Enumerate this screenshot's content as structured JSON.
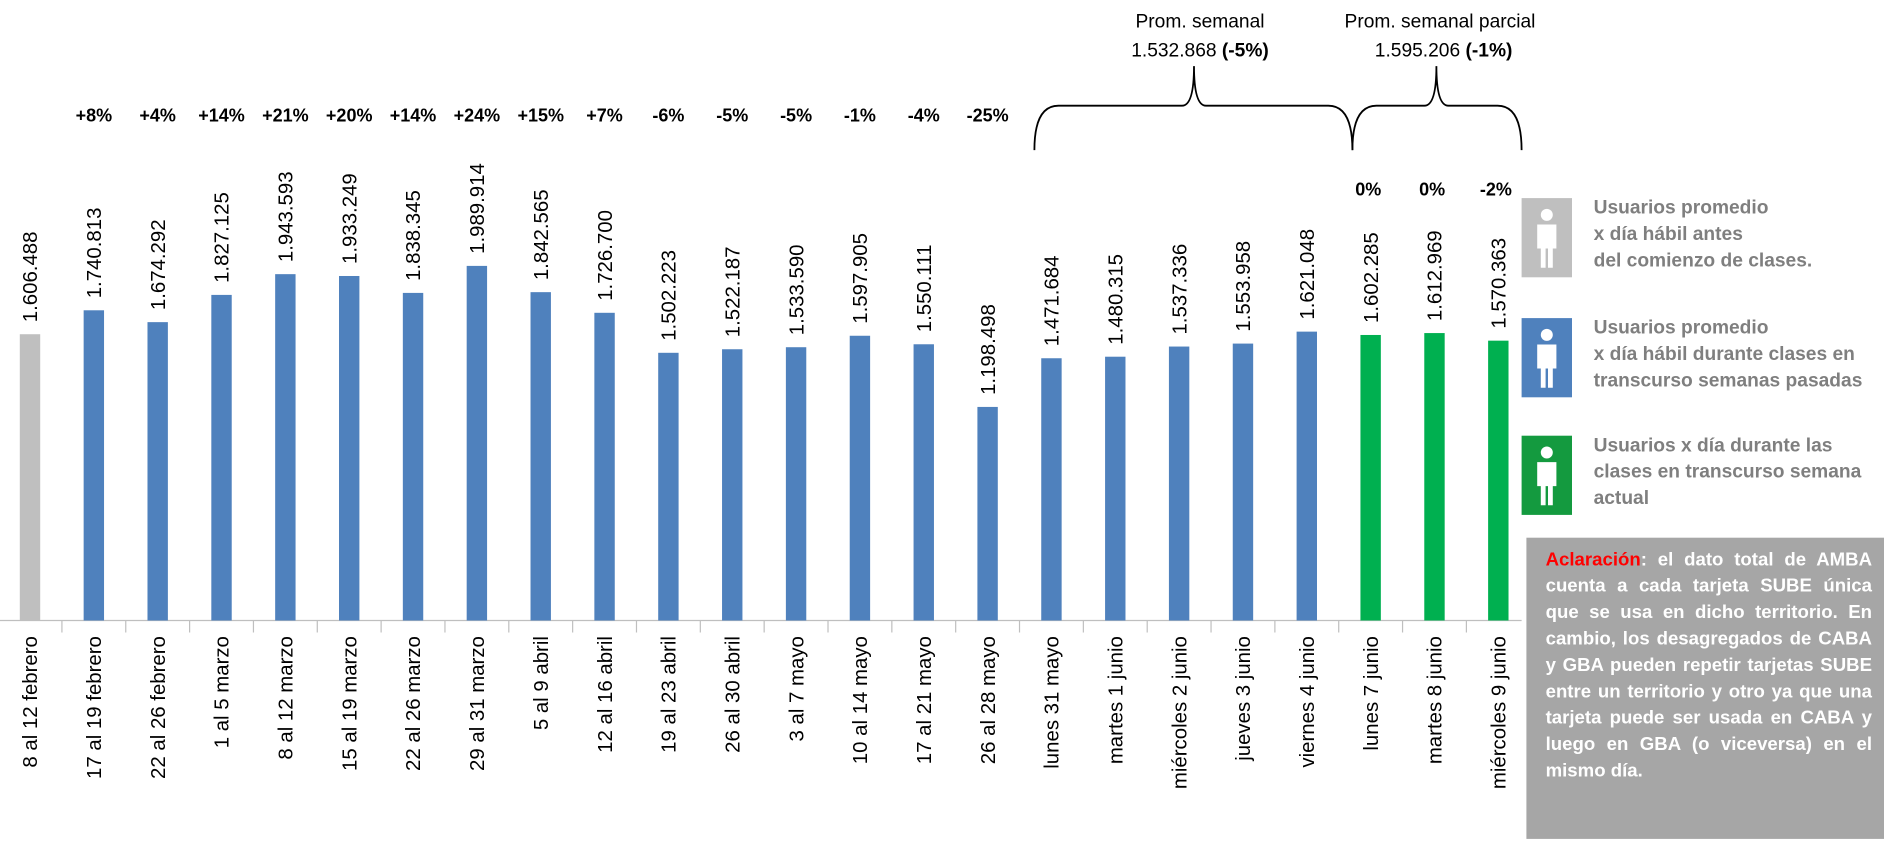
{
  "chart_data": {
    "type": "bar",
    "categories": [
      "8 al 12 febrero",
      "17 al 19 febrero",
      "22 al 26 febrero",
      "1 al 5 marzo",
      "8 al 12 marzo",
      "15 al 19 marzo",
      "22 al 26 marzo",
      "29 al 31 marzo",
      "5 al 9 abril",
      "12 al 16 abril",
      "19 al 23 abril",
      "26 al 30 abril",
      "3 al 7 mayo",
      "10 al 14 mayo",
      "17 al 21 mayo",
      "26 al 28 mayo",
      "lunes 31 mayo",
      "martes 1 junio",
      "miércoles 2 junio",
      "jueves 3 junio",
      "viernes 4 junio",
      "lunes 7 junio",
      "martes 8 junio",
      "miércoles 9 junio"
    ],
    "values": [
      1606488,
      1740813,
      1674292,
      1827125,
      1943593,
      1933249,
      1838345,
      1989914,
      1842565,
      1726700,
      1502223,
      1522187,
      1533590,
      1597905,
      1550111,
      1198498,
      1471684,
      1480315,
      1537336,
      1553958,
      1621048,
      1602285,
      1612969,
      1570363
    ],
    "value_labels": [
      "1.606.488",
      "1.740.813",
      "1.674.292",
      "1.827.125",
      "1.943.593",
      "1.933.249",
      "1.838.345",
      "1.989.914",
      "1.842.565",
      "1.726.700",
      "1.502.223",
      "1.522.187",
      "1.533.590",
      "1.597.905",
      "1.550.111",
      "1.198.498",
      "1.471.684",
      "1.480.315",
      "1.537.336",
      "1.553.958",
      "1.621.048",
      "1.602.285",
      "1.612.969",
      "1.570.363"
    ],
    "colors": [
      "#bfbfbf",
      "#4f81bd",
      "#4f81bd",
      "#4f81bd",
      "#4f81bd",
      "#4f81bd",
      "#4f81bd",
      "#4f81bd",
      "#4f81bd",
      "#4f81bd",
      "#4f81bd",
      "#4f81bd",
      "#4f81bd",
      "#4f81bd",
      "#4f81bd",
      "#4f81bd",
      "#4f81bd",
      "#4f81bd",
      "#4f81bd",
      "#4f81bd",
      "#4f81bd",
      "#00b050",
      "#00b050",
      "#00b050"
    ],
    "change_labels": [
      null,
      "+8%",
      "+4%",
      "+14%",
      "+21%",
      "+20%",
      "+14%",
      "+24%",
      "+15%",
      "+7%",
      "-6%",
      "-5%",
      "-5%",
      "-1%",
      "-4%",
      "-25%",
      null,
      null,
      null,
      null,
      null,
      "0%",
      "0%",
      "-2%"
    ],
    "ylim": [
      0,
      2000000
    ],
    "annotations": [
      {
        "title": "Prom. semanal",
        "value": "1.532.868",
        "change": "(-5%)"
      },
      {
        "title": "Prom. semanal parcial",
        "value": "1.595.206",
        "change": "(-1%)"
      }
    ],
    "legend": [
      {
        "lines": [
          "Usuarios promedio",
          "x día hábil antes",
          "del comienzo de clases."
        ],
        "color": "#bfbfbf"
      },
      {
        "lines": [
          "Usuarios promedio",
          "x día hábil durante clases en",
          "transcurso semanas pasadas"
        ],
        "color": "#4f81bd"
      },
      {
        "lines": [
          "Usuarios x día durante las",
          "clases en transcurso semana",
          "actual"
        ],
        "color": "#00b050"
      }
    ],
    "note": {
      "title": "Aclaración",
      "text": ": el dato total de AMBA cuenta a cada tarjeta SUBE única que se usa en dicho territorio. En cambio, los desagregados de CABA y GBA pueden repetir tarjetas SUBE entre un territorio y otro ya que una tarjeta puede ser usada en CABA y luego en GBA (o viceversa) en el mismo día."
    }
  }
}
